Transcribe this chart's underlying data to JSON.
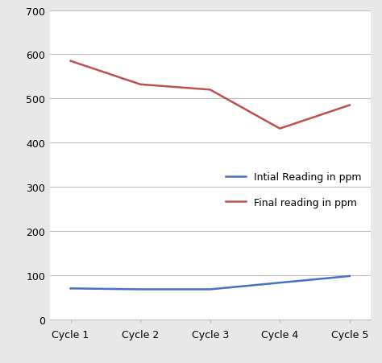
{
  "categories": [
    "Cycle 1",
    "Cycle 2",
    "Cycle 3",
    "Cycle 4",
    "Cycle 5"
  ],
  "initial_reading": [
    70,
    68,
    68,
    83,
    98
  ],
  "final_reading": [
    585,
    532,
    520,
    432,
    485
  ],
  "initial_color": "#4472C4",
  "final_color": "#C0504D",
  "initial_label": "Intial Reading in ppm",
  "final_label": "Final reading in ppm",
  "ylim": [
    0,
    700
  ],
  "yticks": [
    0,
    100,
    200,
    300,
    400,
    500,
    600,
    700
  ],
  "bg_color": "#ffffff",
  "outer_bg_color": "#e8e8e8",
  "grid_color": "#c0c0c0",
  "legend_fontsize": 9,
  "tick_fontsize": 9,
  "line_width": 1.8
}
